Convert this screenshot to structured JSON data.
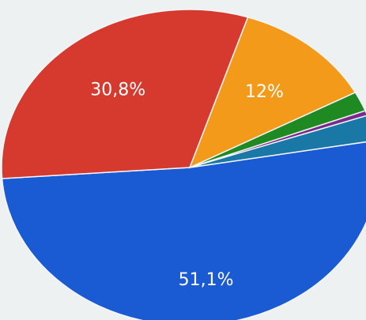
{
  "chart_data": {
    "type": "pie",
    "title": "",
    "slices": [
      {
        "label": "51,1%",
        "value": 51.1,
        "color": "#1a5ad3"
      },
      {
        "label": "",
        "value": 2.6,
        "color": "#1a78a6"
      },
      {
        "label": "",
        "value": 0.5,
        "color": "#7a2a8f"
      },
      {
        "label": "",
        "value": 2.0,
        "color": "#1f8a22"
      },
      {
        "label": "12%",
        "value": 12.0,
        "color": "#f39a1a"
      },
      {
        "label": "30,8%",
        "value": 30.8,
        "color": "#d63a2f"
      }
    ]
  }
}
